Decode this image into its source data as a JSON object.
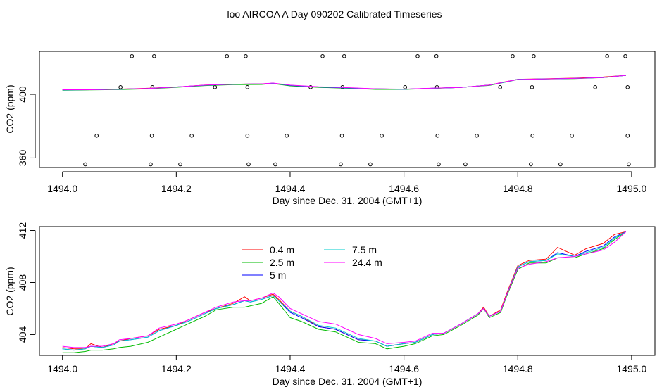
{
  "page_title": "loo AIRCOA A  Day 090202  Calibrated Timeseries",
  "chart_data": [
    {
      "type": "scatter",
      "id": "top",
      "xlabel": "Day since Dec. 31, 2004 (GMT+1)",
      "ylabel": "CO2 (ppm)",
      "xlim": [
        1493.98,
        1495.03
      ],
      "ylim": [
        354,
        427
      ],
      "xticks": [
        1494.0,
        1494.2,
        1494.4,
        1494.6,
        1494.8,
        1495.0
      ],
      "xtick_labels": [
        "1494.0",
        "1494.2",
        "1494.4",
        "1494.6",
        "1494.8",
        "1495.0"
      ],
      "yticks": [
        360,
        400
      ],
      "ytick_labels": [
        "360",
        "400"
      ],
      "grid": false,
      "points": [
        {
          "x": 1494.122,
          "y": 424.0
        },
        {
          "x": 1494.161,
          "y": 424.0
        },
        {
          "x": 1494.289,
          "y": 424.0
        },
        {
          "x": 1494.322,
          "y": 424.0
        },
        {
          "x": 1494.457,
          "y": 424.0
        },
        {
          "x": 1494.495,
          "y": 424.0
        },
        {
          "x": 1494.624,
          "y": 424.0
        },
        {
          "x": 1494.657,
          "y": 424.0
        },
        {
          "x": 1494.791,
          "y": 424.0
        },
        {
          "x": 1494.828,
          "y": 424.0
        },
        {
          "x": 1494.957,
          "y": 424.0
        },
        {
          "x": 1494.989,
          "y": 424.0
        },
        {
          "x": 1494.102,
          "y": 404.5
        },
        {
          "x": 1494.158,
          "y": 404.5
        },
        {
          "x": 1494.268,
          "y": 404.5
        },
        {
          "x": 1494.325,
          "y": 404.5
        },
        {
          "x": 1494.436,
          "y": 404.5
        },
        {
          "x": 1494.492,
          "y": 404.5
        },
        {
          "x": 1494.602,
          "y": 404.5
        },
        {
          "x": 1494.658,
          "y": 404.5
        },
        {
          "x": 1494.769,
          "y": 404.5
        },
        {
          "x": 1494.825,
          "y": 404.5
        },
        {
          "x": 1494.936,
          "y": 404.5
        },
        {
          "x": 1494.993,
          "y": 404.5
        },
        {
          "x": 1494.06,
          "y": 374.0
        },
        {
          "x": 1494.157,
          "y": 374.0
        },
        {
          "x": 1494.227,
          "y": 374.0
        },
        {
          "x": 1494.325,
          "y": 374.0
        },
        {
          "x": 1494.394,
          "y": 374.0
        },
        {
          "x": 1494.491,
          "y": 374.0
        },
        {
          "x": 1494.561,
          "y": 374.0
        },
        {
          "x": 1494.659,
          "y": 374.0
        },
        {
          "x": 1494.728,
          "y": 374.0
        },
        {
          "x": 1494.826,
          "y": 374.0
        },
        {
          "x": 1494.895,
          "y": 374.0
        },
        {
          "x": 1494.993,
          "y": 374.0
        },
        {
          "x": 1494.04,
          "y": 356.0
        },
        {
          "x": 1494.155,
          "y": 356.0
        },
        {
          "x": 1494.207,
          "y": 356.0
        },
        {
          "x": 1494.327,
          "y": 356.0
        },
        {
          "x": 1494.374,
          "y": 356.0
        },
        {
          "x": 1494.489,
          "y": 356.0
        },
        {
          "x": 1494.541,
          "y": 356.0
        },
        {
          "x": 1494.661,
          "y": 356.0
        },
        {
          "x": 1494.708,
          "y": 356.0
        },
        {
          "x": 1494.823,
          "y": 356.0
        },
        {
          "x": 1494.875,
          "y": 356.0
        },
        {
          "x": 1494.995,
          "y": 356.0
        }
      ],
      "series": [
        {
          "color": "#ff0000",
          "x": [
            1494.0,
            1494.05,
            1494.1,
            1494.15,
            1494.2,
            1494.25,
            1494.3,
            1494.35,
            1494.37,
            1494.4,
            1494.45,
            1494.5,
            1494.55,
            1494.6,
            1494.65,
            1494.7,
            1494.75,
            1494.78,
            1494.8,
            1494.85,
            1494.9,
            1494.95,
            1494.99
          ],
          "y": [
            402.8,
            402.9,
            403.3,
            403.8,
            404.6,
            405.8,
            406.4,
            406.6,
            407.0,
            405.6,
            404.5,
            404.0,
            403.4,
            403.2,
            403.8,
            404.3,
            405.9,
            408.0,
            409.5,
            409.8,
            410.2,
            410.9,
            411.9
          ]
        },
        {
          "color": "#00bb00",
          "x": [
            1494.0,
            1494.05,
            1494.1,
            1494.15,
            1494.2,
            1494.25,
            1494.3,
            1494.35,
            1494.37,
            1494.4,
            1494.45,
            1494.5,
            1494.55,
            1494.6,
            1494.65,
            1494.7,
            1494.75,
            1494.78,
            1494.8,
            1494.85,
            1494.9,
            1494.95,
            1494.99
          ],
          "y": [
            402.6,
            402.8,
            403.0,
            403.4,
            404.4,
            405.5,
            406.1,
            406.2,
            406.8,
            405.3,
            404.4,
            403.8,
            403.1,
            403.1,
            403.7,
            404.4,
            405.6,
            407.8,
            409.3,
            409.6,
            409.9,
            410.5,
            411.9
          ]
        },
        {
          "color": "#0000ff",
          "x": [
            1494.0,
            1494.05,
            1494.1,
            1494.15,
            1494.2,
            1494.25,
            1494.3,
            1494.35,
            1494.37,
            1494.4,
            1494.45,
            1494.5,
            1494.55,
            1494.6,
            1494.65,
            1494.7,
            1494.75,
            1494.78,
            1494.8,
            1494.85,
            1494.9,
            1494.95,
            1494.99
          ],
          "y": [
            402.8,
            402.9,
            403.2,
            403.7,
            404.6,
            405.7,
            406.4,
            406.5,
            407.0,
            405.6,
            404.6,
            404.0,
            403.4,
            403.2,
            403.8,
            404.3,
            405.8,
            407.9,
            409.4,
            409.7,
            410.0,
            410.6,
            411.9
          ]
        },
        {
          "color": "#00cccc",
          "x": [
            1494.0,
            1494.05,
            1494.1,
            1494.15,
            1494.2,
            1494.25,
            1494.3,
            1494.35,
            1494.37,
            1494.4,
            1494.45,
            1494.5,
            1494.55,
            1494.6,
            1494.65,
            1494.7,
            1494.75,
            1494.78,
            1494.8,
            1494.85,
            1494.9,
            1494.95,
            1494.99
          ],
          "y": [
            402.8,
            402.9,
            403.2,
            403.7,
            404.6,
            405.7,
            406.4,
            406.5,
            407.0,
            405.7,
            404.7,
            404.1,
            403.4,
            403.2,
            403.8,
            404.3,
            405.8,
            407.9,
            409.4,
            409.7,
            410.0,
            410.6,
            411.9
          ]
        },
        {
          "color": "#ff00ff",
          "x": [
            1494.0,
            1494.05,
            1494.1,
            1494.15,
            1494.2,
            1494.25,
            1494.3,
            1494.35,
            1494.37,
            1494.4,
            1494.45,
            1494.5,
            1494.55,
            1494.6,
            1494.65,
            1494.7,
            1494.75,
            1494.78,
            1494.8,
            1494.85,
            1494.9,
            1494.95,
            1494.99
          ],
          "y": [
            402.9,
            402.9,
            403.3,
            403.7,
            404.6,
            405.8,
            406.4,
            406.6,
            407.1,
            405.8,
            404.8,
            404.2,
            403.5,
            403.3,
            403.9,
            404.3,
            405.8,
            408.0,
            409.3,
            409.7,
            410.0,
            410.6,
            411.9
          ]
        }
      ]
    },
    {
      "type": "line",
      "id": "bottom",
      "xlabel": "Day since Dec. 31, 2004 (GMT+1)",
      "ylabel": "CO2 (ppm)",
      "xlim": [
        1493.98,
        1495.03
      ],
      "ylim": [
        402.4,
        412.3
      ],
      "xticks": [
        1494.0,
        1494.2,
        1494.4,
        1494.6,
        1494.8,
        1495.0
      ],
      "xtick_labels": [
        "1494.0",
        "1494.2",
        "1494.4",
        "1494.6",
        "1494.8",
        "1495.0"
      ],
      "yticks": [
        404,
        408,
        412
      ],
      "ytick_labels": [
        "404",
        "408",
        "412"
      ],
      "grid": false,
      "legend_position": "top-center",
      "series": [
        {
          "name": "0.4 m",
          "color": "#ff0000",
          "x": [
            1494.0,
            1494.02,
            1494.04,
            1494.05,
            1494.07,
            1494.09,
            1494.1,
            1494.12,
            1494.15,
            1494.17,
            1494.2,
            1494.22,
            1494.25,
            1494.27,
            1494.3,
            1494.32,
            1494.33,
            1494.35,
            1494.37,
            1494.38,
            1494.4,
            1494.42,
            1494.45,
            1494.48,
            1494.5,
            1494.52,
            1494.55,
            1494.57,
            1494.6,
            1494.62,
            1494.65,
            1494.67,
            1494.7,
            1494.73,
            1494.74,
            1494.75,
            1494.77,
            1494.78,
            1494.8,
            1494.82,
            1494.85,
            1494.87,
            1494.9,
            1494.92,
            1494.95,
            1494.97,
            1494.99
          ],
          "y": [
            403.0,
            402.9,
            402.9,
            403.3,
            403.0,
            403.3,
            403.5,
            403.7,
            403.9,
            404.4,
            404.7,
            405.1,
            405.7,
            406.0,
            406.4,
            406.9,
            406.6,
            406.8,
            407.1,
            406.7,
            405.8,
            405.4,
            404.6,
            404.4,
            404.0,
            403.6,
            403.5,
            403.1,
            403.3,
            403.4,
            404.0,
            404.1,
            404.8,
            405.6,
            406.1,
            405.4,
            405.9,
            407.1,
            409.3,
            409.7,
            409.8,
            410.7,
            410.1,
            410.6,
            411.0,
            411.7,
            411.9
          ]
        },
        {
          "name": "2.5 m",
          "color": "#00bb00",
          "x": [
            1494.0,
            1494.02,
            1494.04,
            1494.05,
            1494.07,
            1494.09,
            1494.1,
            1494.12,
            1494.15,
            1494.17,
            1494.2,
            1494.22,
            1494.25,
            1494.27,
            1494.3,
            1494.32,
            1494.33,
            1494.35,
            1494.37,
            1494.38,
            1494.4,
            1494.42,
            1494.45,
            1494.48,
            1494.5,
            1494.52,
            1494.55,
            1494.57,
            1494.6,
            1494.62,
            1494.65,
            1494.67,
            1494.7,
            1494.73,
            1494.74,
            1494.75,
            1494.77,
            1494.78,
            1494.8,
            1494.82,
            1494.85,
            1494.87,
            1494.9,
            1494.92,
            1494.95,
            1494.97,
            1494.99
          ],
          "y": [
            402.6,
            402.6,
            402.7,
            402.8,
            402.8,
            402.9,
            403.0,
            403.1,
            403.4,
            403.8,
            404.4,
            404.8,
            405.4,
            405.9,
            406.1,
            406.1,
            406.2,
            406.4,
            406.9,
            406.4,
            405.3,
            405.0,
            404.4,
            404.2,
            403.8,
            403.4,
            403.3,
            402.9,
            403.1,
            403.3,
            403.9,
            404.0,
            404.7,
            405.5,
            406.0,
            405.3,
            405.7,
            406.9,
            409.0,
            409.5,
            409.5,
            409.9,
            409.9,
            410.2,
            410.6,
            411.3,
            411.9
          ]
        },
        {
          "name": "5 m",
          "color": "#0000ff",
          "x": [
            1494.0,
            1494.02,
            1494.04,
            1494.05,
            1494.07,
            1494.09,
            1494.1,
            1494.12,
            1494.15,
            1494.17,
            1494.2,
            1494.22,
            1494.25,
            1494.27,
            1494.3,
            1494.32,
            1494.33,
            1494.35,
            1494.37,
            1494.38,
            1494.4,
            1494.42,
            1494.45,
            1494.48,
            1494.5,
            1494.52,
            1494.55,
            1494.57,
            1494.6,
            1494.62,
            1494.65,
            1494.67,
            1494.7,
            1494.73,
            1494.74,
            1494.75,
            1494.77,
            1494.78,
            1494.8,
            1494.82,
            1494.85,
            1494.87,
            1494.9,
            1494.92,
            1494.95,
            1494.97,
            1494.99
          ],
          "y": [
            402.9,
            402.8,
            402.9,
            403.1,
            403.0,
            403.2,
            403.5,
            403.6,
            403.8,
            404.3,
            404.7,
            405.0,
            405.6,
            406.0,
            406.3,
            406.6,
            406.5,
            406.7,
            407.0,
            406.6,
            405.7,
            405.3,
            404.6,
            404.4,
            404.0,
            403.6,
            403.5,
            403.1,
            403.3,
            403.4,
            404.0,
            404.1,
            404.8,
            405.6,
            406.0,
            405.4,
            405.8,
            407.0,
            409.2,
            409.6,
            409.7,
            410.3,
            410.0,
            410.4,
            410.8,
            411.5,
            411.9
          ]
        },
        {
          "name": "7.5 m",
          "color": "#00cccc",
          "x": [
            1494.0,
            1494.02,
            1494.04,
            1494.05,
            1494.07,
            1494.09,
            1494.1,
            1494.12,
            1494.15,
            1494.17,
            1494.2,
            1494.22,
            1494.25,
            1494.27,
            1494.3,
            1494.32,
            1494.33,
            1494.35,
            1494.37,
            1494.38,
            1494.4,
            1494.42,
            1494.45,
            1494.48,
            1494.5,
            1494.52,
            1494.55,
            1494.57,
            1494.6,
            1494.62,
            1494.65,
            1494.67,
            1494.7,
            1494.73,
            1494.74,
            1494.75,
            1494.77,
            1494.78,
            1494.8,
            1494.82,
            1494.85,
            1494.87,
            1494.9,
            1494.92,
            1494.95,
            1494.97,
            1494.99
          ],
          "y": [
            402.9,
            402.8,
            402.9,
            403.1,
            403.0,
            403.2,
            403.5,
            403.6,
            403.8,
            404.3,
            404.7,
            405.0,
            405.6,
            406.0,
            406.3,
            406.6,
            406.5,
            406.7,
            407.0,
            406.6,
            405.8,
            405.4,
            404.7,
            404.5,
            404.1,
            403.7,
            403.5,
            403.1,
            403.3,
            403.4,
            404.0,
            404.1,
            404.8,
            405.6,
            406.0,
            405.4,
            405.8,
            407.0,
            409.2,
            409.6,
            409.7,
            410.2,
            410.0,
            410.3,
            410.7,
            411.4,
            411.9
          ]
        },
        {
          "name": "24.4 m",
          "color": "#ff00ff",
          "x": [
            1494.0,
            1494.02,
            1494.04,
            1494.05,
            1494.07,
            1494.09,
            1494.1,
            1494.12,
            1494.15,
            1494.17,
            1494.2,
            1494.22,
            1494.25,
            1494.27,
            1494.3,
            1494.32,
            1494.33,
            1494.35,
            1494.37,
            1494.38,
            1494.4,
            1494.42,
            1494.45,
            1494.48,
            1494.5,
            1494.52,
            1494.55,
            1494.57,
            1494.6,
            1494.62,
            1494.65,
            1494.67,
            1494.7,
            1494.73,
            1494.74,
            1494.75,
            1494.77,
            1494.78,
            1494.8,
            1494.82,
            1494.85,
            1494.87,
            1494.9,
            1494.92,
            1494.95,
            1494.97,
            1494.99
          ],
          "y": [
            403.1,
            403.0,
            403.0,
            403.1,
            403.1,
            403.3,
            403.6,
            403.7,
            403.9,
            404.5,
            404.8,
            405.1,
            405.7,
            406.1,
            406.5,
            406.6,
            406.6,
            406.8,
            407.2,
            406.9,
            406.0,
            405.6,
            405.0,
            404.8,
            404.4,
            404.0,
            403.7,
            403.3,
            403.4,
            403.5,
            404.1,
            404.1,
            404.8,
            405.6,
            406.0,
            405.4,
            405.8,
            407.0,
            409.1,
            409.4,
            409.6,
            409.9,
            410.0,
            410.2,
            410.5,
            411.1,
            411.9
          ]
        }
      ]
    }
  ]
}
